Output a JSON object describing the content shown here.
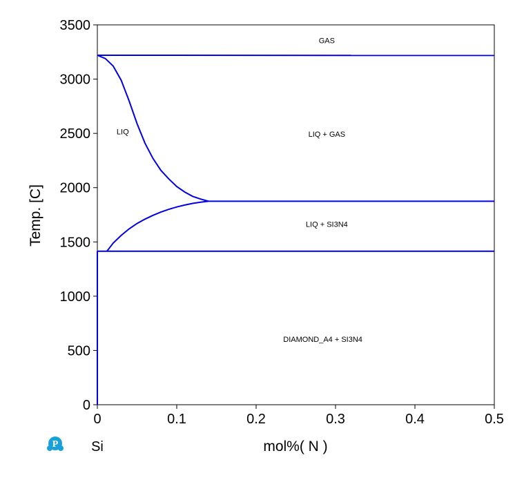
{
  "chart_data": {
    "type": "line",
    "title": "",
    "xlabel": "mol%( N )",
    "ylabel": "Temp. [C]",
    "xlim": [
      0,
      0.5
    ],
    "ylim": [
      0,
      3500
    ],
    "x_ticks": [
      0,
      0.1,
      0.2,
      0.3,
      0.4,
      0.5
    ],
    "x_tick_labels": [
      "0",
      "0.1",
      "0.2",
      "0.3",
      "0.4",
      "0.5"
    ],
    "y_ticks": [
      0,
      500,
      1000,
      1500,
      2000,
      2500,
      3000,
      3500
    ],
    "y_tick_labels": [
      "0",
      "500",
      "1000",
      "1500",
      "2000",
      "2500",
      "3000",
      "3500"
    ],
    "grid": false,
    "line_color": "#0000e6",
    "element_label": "Si",
    "logo_icon": "pandat-logo-icon",
    "series": [
      {
        "x": [
          0,
          0.5
        ],
        "y": [
          3220,
          3218
        ]
      },
      {
        "x": [
          0,
          0.01,
          0.02,
          0.03,
          0.04,
          0.05,
          0.06,
          0.07,
          0.08,
          0.09,
          0.1,
          0.11,
          0.12,
          0.13,
          0.14
        ],
        "y": [
          3220,
          3190,
          3120,
          2990,
          2800,
          2590,
          2410,
          2270,
          2160,
          2080,
          2010,
          1960,
          1920,
          1895,
          1875
        ]
      },
      {
        "x": [
          0.012,
          0.02,
          0.03,
          0.04,
          0.05,
          0.06,
          0.07,
          0.08,
          0.09,
          0.1,
          0.11,
          0.12,
          0.13,
          0.14
        ],
        "y": [
          1414,
          1490,
          1560,
          1620,
          1670,
          1710,
          1745,
          1775,
          1800,
          1822,
          1840,
          1855,
          1866,
          1875
        ]
      },
      {
        "x": [
          0.14,
          0.5
        ],
        "y": [
          1875,
          1875
        ]
      },
      {
        "x": [
          0,
          0.5
        ],
        "y": [
          1414,
          1414
        ]
      },
      {
        "x": [
          0,
          0
        ],
        "y": [
          0,
          1414
        ]
      }
    ],
    "annotations": [
      {
        "text": "GAS",
        "x": 0.289,
        "y": 3330
      },
      {
        "text": "LIQ",
        "x": 0.032,
        "y": 2490
      },
      {
        "text": "LIQ + GAS",
        "x": 0.289,
        "y": 2470
      },
      {
        "text": "LIQ + SI3N4",
        "x": 0.289,
        "y": 1640
      },
      {
        "text": "DIAMOND_A4 + SI3N4",
        "x": 0.284,
        "y": 580
      }
    ]
  }
}
